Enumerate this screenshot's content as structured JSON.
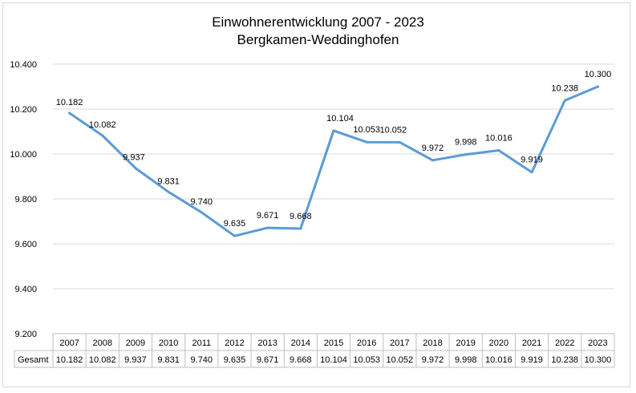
{
  "chart_data": {
    "type": "line",
    "title": "Einwohnerentwicklung 2007 - 2023",
    "subtitle": "Bergkamen-Weddinghofen",
    "categories": [
      "2007",
      "2008",
      "2009",
      "2010",
      "2011",
      "2012",
      "2013",
      "2014",
      "2015",
      "2016",
      "2017",
      "2018",
      "2019",
      "2020",
      "2021",
      "2022",
      "2023"
    ],
    "series": [
      {
        "name": "Gesamt",
        "values": [
          10182,
          10082,
          9937,
          9831,
          9740,
          9635,
          9671,
          9668,
          10104,
          10053,
          10052,
          9972,
          9998,
          10016,
          9919,
          10238,
          10300
        ],
        "labels": [
          "10.182",
          "10.082",
          "9.937",
          "9.831",
          "9.740",
          "9.635",
          "9.671",
          "9.668",
          "10.104",
          "10.053",
          "10.052",
          "9.972",
          "9.998",
          "10.016",
          "9.919",
          "10.238",
          "10.300"
        ]
      }
    ],
    "ylim": [
      9200,
      10400
    ],
    "yticks": [
      9200,
      9400,
      9600,
      9800,
      10000,
      10200,
      10400
    ],
    "ytick_labels": [
      "9.200",
      "9.400",
      "9.600",
      "9.800",
      "10.000",
      "10.200",
      "10.400"
    ],
    "grid": true,
    "data_table": true,
    "line_color": "#5b9bd5"
  }
}
